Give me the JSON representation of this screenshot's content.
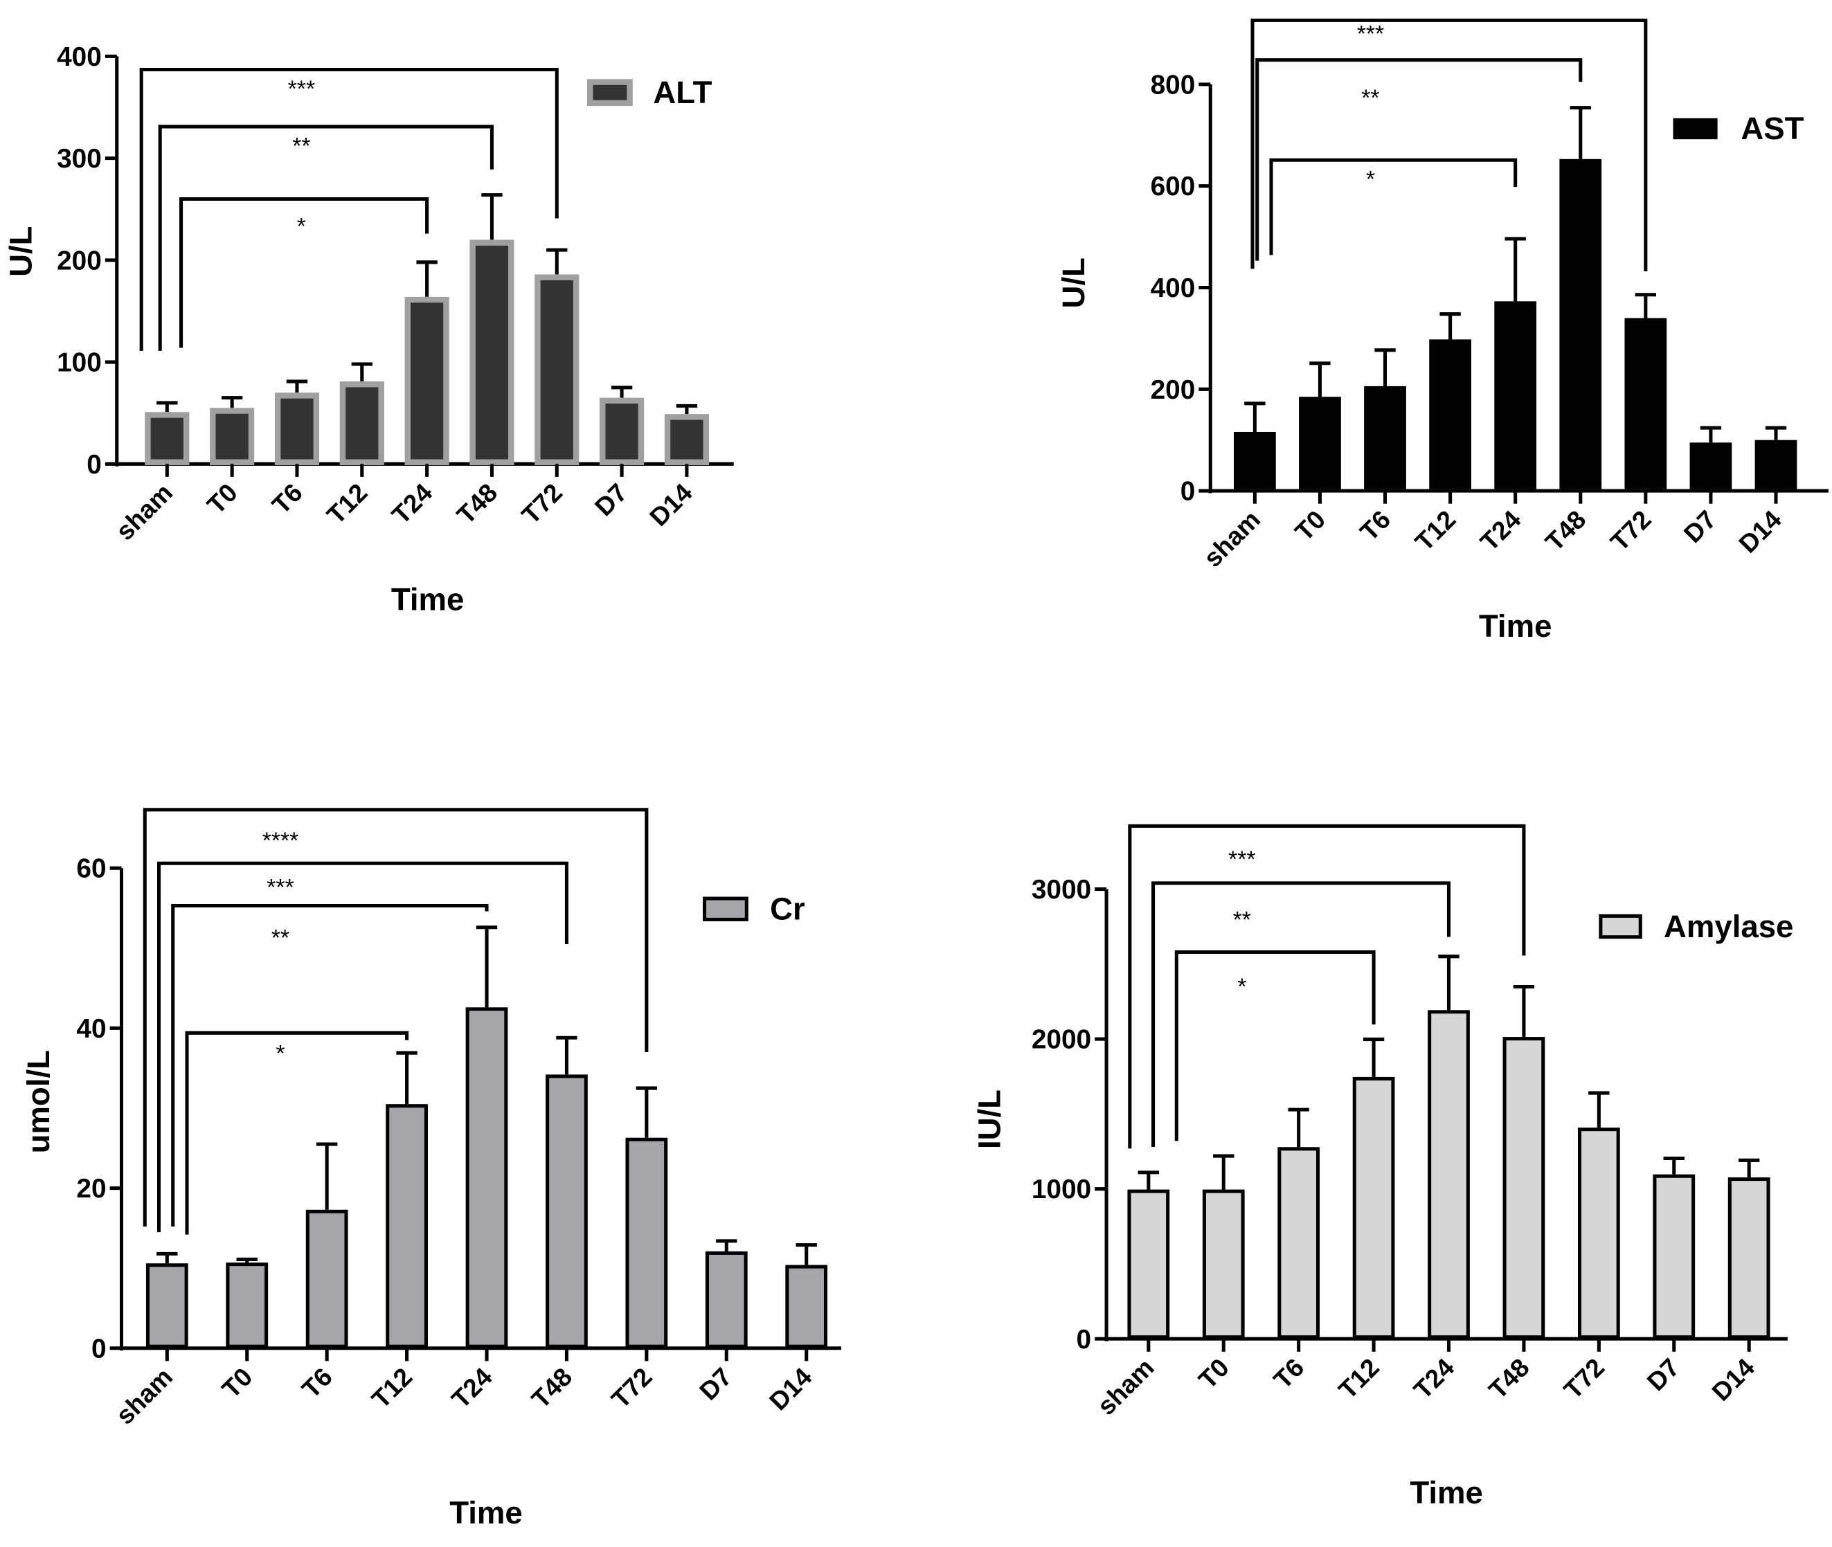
{
  "chart_data": [
    {
      "id": "alt",
      "type": "bar",
      "categories": [
        "sham",
        "T0",
        "T6",
        "T12",
        "T24",
        "T48",
        "T72",
        "D7",
        "D14"
      ],
      "series": [
        {
          "name": "ALT",
          "values": [
            51,
            55,
            70,
            81,
            164,
            220,
            186,
            65,
            49
          ],
          "error_upper": [
            60,
            65,
            81,
            98,
            198,
            264,
            210,
            75,
            57
          ]
        }
      ],
      "xlabel": "Time",
      "ylabel": "U/L",
      "ylim": [
        0,
        400
      ],
      "yticks": [
        0,
        100,
        200,
        300,
        400
      ],
      "legend": "top-right",
      "colors": {
        "fill": "#333333",
        "stroke": "#a0a0a0"
      },
      "significance": [
        {
          "from": "sham",
          "to": "T72",
          "level": 387,
          "left_end": 111,
          "right_end": 241,
          "label": "***"
        },
        {
          "from": "sham",
          "to": "T48",
          "level": 331,
          "left_end": 111,
          "right_end": 289,
          "label": "**"
        },
        {
          "from": "sham",
          "to": "T24",
          "level": 260,
          "left_end": 114,
          "right_end": 226,
          "label": "*"
        }
      ]
    },
    {
      "id": "ast",
      "type": "bar",
      "categories": [
        "sham",
        "T0",
        "T6",
        "T12",
        "T24",
        "T48",
        "T72",
        "D7",
        "D14"
      ],
      "series": [
        {
          "name": "AST",
          "values": [
            116,
            185,
            206,
            298,
            373,
            653,
            340,
            95,
            100
          ],
          "error_upper": [
            172,
            251,
            277,
            348,
            496,
            754,
            386,
            124,
            124
          ]
        }
      ],
      "xlabel": "Time",
      "ylabel": "U/L",
      "ylim": [
        0,
        800
      ],
      "yticks": [
        0,
        200,
        400,
        600,
        800
      ],
      "legend": "top-right",
      "colors": {
        "fill": "#000000",
        "stroke": "#000000"
      },
      "significance": [
        {
          "from": "sham",
          "to": "T72",
          "level": 926,
          "left_end": 437,
          "right_end": 432,
          "label": "***"
        },
        {
          "from": "sham",
          "to": "T48",
          "level": 848,
          "left_end": 453,
          "right_end": 805,
          "label": "**"
        },
        {
          "from": "sham",
          "to": "T24",
          "level": 651,
          "left_end": 464,
          "right_end": 598,
          "label": "*"
        }
      ]
    },
    {
      "id": "cr",
      "type": "bar",
      "categories": [
        "sham",
        "T0",
        "T6",
        "T12",
        "T24",
        "T48",
        "T72",
        "D7",
        "D14"
      ],
      "series": [
        {
          "name": "Cr",
          "values": [
            10.6,
            10.7,
            17.3,
            30.5,
            42.6,
            34.2,
            26.3,
            12.1,
            10.4
          ],
          "error_upper": [
            11.8,
            11.1,
            25.5,
            36.9,
            52.6,
            38.8,
            32.5,
            13.4,
            12.9
          ]
        }
      ],
      "xlabel": "Time",
      "ylabel": "umol/L",
      "ylim": [
        0,
        60
      ],
      "yticks": [
        0,
        20,
        40,
        60
      ],
      "legend": "top-right",
      "colors": {
        "fill": "#a5a5aa",
        "stroke": "#000000"
      },
      "significance": [
        {
          "from": "sham",
          "to": "T72",
          "level": 67.3,
          "left_end": 15.2,
          "right_end": 37,
          "label": "****"
        },
        {
          "from": "sham",
          "to": "T48",
          "level": 60.6,
          "left_end": 14.5,
          "right_end": 50.5,
          "label": "***"
        },
        {
          "from": "sham",
          "to": "T24",
          "level": 55.3,
          "left_end": 15.2,
          "right_end": 54.6,
          "label": "**"
        },
        {
          "from": "sham",
          "to": "T12",
          "level": 39.4,
          "left_end": 14.2,
          "right_end": 38.5,
          "label": "*"
        }
      ]
    },
    {
      "id": "amylase",
      "type": "bar",
      "categories": [
        "sham",
        "T0",
        "T6",
        "T12",
        "T24",
        "T48",
        "T72",
        "D7",
        "D14"
      ],
      "series": [
        {
          "name": "Amylase",
          "values": [
            996,
            996,
            1279,
            1747,
            2193,
            2014,
            1409,
            1097,
            1077
          ],
          "error_upper": [
            1110,
            1220,
            1529,
            1998,
            2551,
            2349,
            1640,
            1204,
            1191
          ]
        }
      ],
      "xlabel": "Time",
      "ylabel": "IU/L",
      "ylim": [
        0,
        3000
      ],
      "yticks": [
        0,
        1000,
        2000,
        3000
      ],
      "legend": "top-right",
      "colors": {
        "fill": "#d6d6d6",
        "stroke": "#000000"
      },
      "significance": [
        {
          "from": "sham",
          "to": "T48",
          "level": 3421,
          "left_end": 1270,
          "right_end": 2557,
          "label": "***"
        },
        {
          "from": "sham",
          "to": "T24",
          "level": 3040,
          "left_end": 1280,
          "right_end": 2681,
          "label": "**"
        },
        {
          "from": "sham",
          "to": "T12",
          "level": 2580,
          "left_end": 1320,
          "right_end": 2097,
          "label": "*"
        }
      ]
    }
  ]
}
